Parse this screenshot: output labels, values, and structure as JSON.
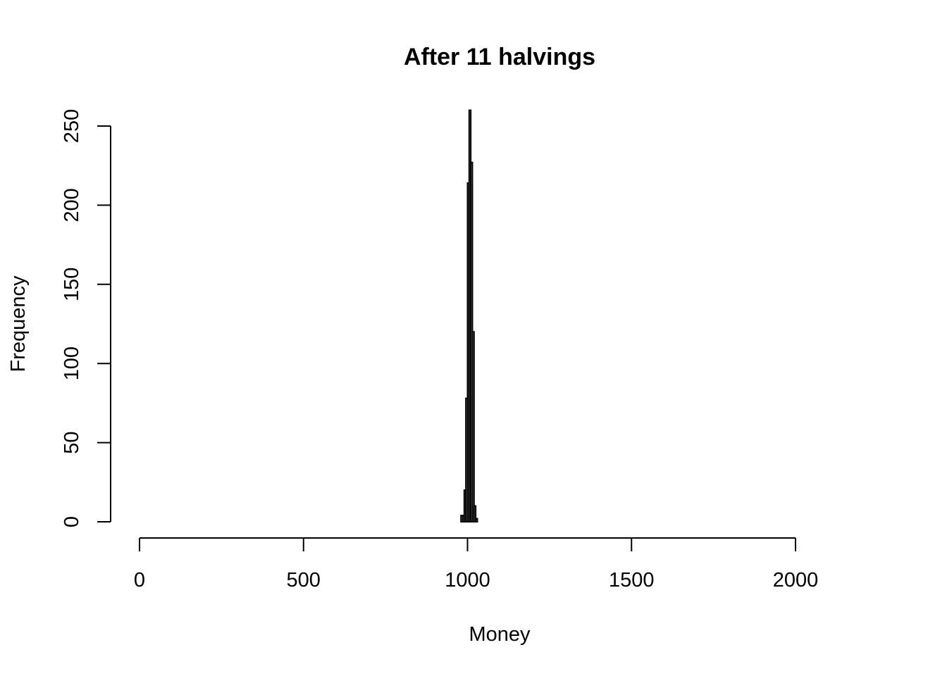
{
  "chart_data": {
    "type": "bar",
    "title": "After 11 halvings",
    "xlabel": "Money",
    "ylabel": "Frequency",
    "xlim": [
      0,
      2000
    ],
    "ylim": [
      0,
      250
    ],
    "x_ticks": [
      "0",
      "500",
      "1000",
      "1500",
      "2000"
    ],
    "y_ticks": [
      "0",
      "50",
      "100",
      "150",
      "200",
      "250"
    ],
    "bin_width": 5,
    "bins": [
      {
        "start": 980,
        "end": 985,
        "count": 4
      },
      {
        "start": 985,
        "end": 990,
        "count": 4
      },
      {
        "start": 990,
        "end": 995,
        "count": 20
      },
      {
        "start": 995,
        "end": 1000,
        "count": 78
      },
      {
        "start": 1000,
        "end": 1005,
        "count": 214
      },
      {
        "start": 1005,
        "end": 1010,
        "count": 260
      },
      {
        "start": 1010,
        "end": 1015,
        "count": 227
      },
      {
        "start": 1015,
        "end": 1020,
        "count": 120
      },
      {
        "start": 1020,
        "end": 1025,
        "count": 10
      },
      {
        "start": 1025,
        "end": 1030,
        "count": 2
      }
    ],
    "grid": false,
    "legend": "none",
    "colors": {
      "bar_fill": "#bebebe",
      "bar_stroke": "#000000"
    }
  }
}
